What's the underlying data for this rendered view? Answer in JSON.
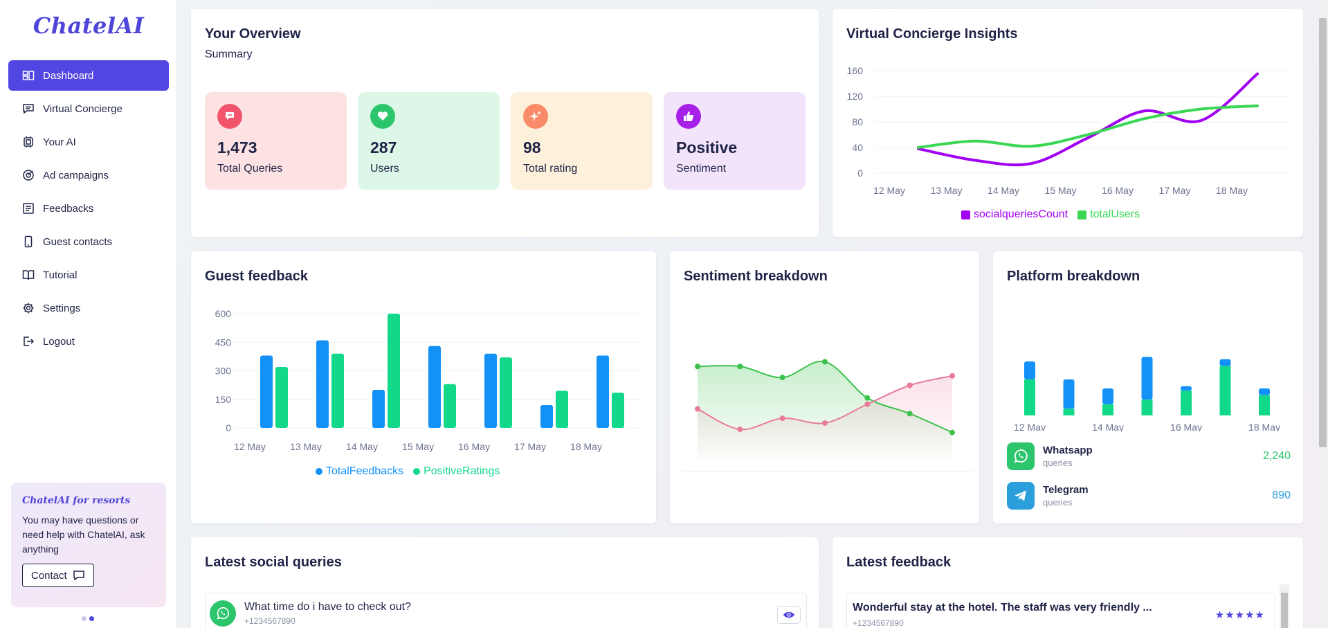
{
  "app": {
    "logo": "ChatelAI"
  },
  "sidebar": {
    "items": [
      {
        "label": "Dashboard",
        "icon": "dashboard-icon",
        "active": true
      },
      {
        "label": "Virtual Concierge",
        "icon": "chat-icon"
      },
      {
        "label": "Your AI",
        "icon": "chip-icon"
      },
      {
        "label": "Ad campaigns",
        "icon": "target-icon"
      },
      {
        "label": "Feedbacks",
        "icon": "feedback-icon"
      },
      {
        "label": "Guest contacts",
        "icon": "phone-icon"
      },
      {
        "label": "Tutorial",
        "icon": "book-icon"
      },
      {
        "label": "Settings",
        "icon": "gear-icon"
      },
      {
        "label": "Logout",
        "icon": "logout-icon"
      }
    ],
    "promo": {
      "title": "ChatelAI for resorts",
      "text": "You may have questions or need help with ChatelAI, ask anything",
      "button": "Contact"
    }
  },
  "overview": {
    "title": "Your Overview",
    "subtitle": "Summary",
    "stats": [
      {
        "value": "1,473",
        "label": "Total Queries",
        "icon": "chat-bubble-icon",
        "color": "#f2546b",
        "bg": "#fde2e4"
      },
      {
        "value": "287",
        "label": "Users",
        "icon": "heart-icon",
        "color": "#2cc56b",
        "bg": "#dcf7e7"
      },
      {
        "value": "98",
        "label": "Total rating",
        "icon": "sparkle-icon",
        "color": "#f98b68",
        "bg": "#fdf1dc"
      },
      {
        "value": "Positive",
        "label": "Sentiment",
        "icon": "thumbs-up-icon",
        "color": "#a620e8",
        "bg": "#f2e5fb"
      }
    ]
  },
  "colors": {
    "accent": "#5146e1",
    "purple": "#a100f2",
    "green": "#3ad654",
    "blue": "#1491f7",
    "teal_green": "#12d98a",
    "pink": "#e97a9a",
    "sent_green": "#3cc24c"
  },
  "insights": {
    "title": "Virtual Concierge Insights",
    "chart_data": {
      "type": "line",
      "x": [
        "12 May",
        "13 May",
        "14 May",
        "15 May",
        "16 May",
        "17 May",
        "18 May"
      ],
      "series": [
        {
          "name": "socialqueriesCount",
          "values": [
            38,
            20,
            15,
            55,
            97,
            82,
            155
          ]
        },
        {
          "name": "totalUsers",
          "values": [
            40,
            50,
            42,
            60,
            85,
            100,
            105
          ]
        }
      ],
      "yticks": [
        "160",
        "120",
        "80",
        "40",
        "0"
      ],
      "ylim": [
        0,
        160
      ]
    }
  },
  "guest_feedback": {
    "title": "Guest feedback",
    "chart_data": {
      "type": "bar",
      "categories": [
        "12 May",
        "13 May",
        "14 May",
        "15 May",
        "16 May",
        "17 May",
        "18 May"
      ],
      "series": [
        {
          "name": "TotalFeedbacks",
          "values": [
            380,
            460,
            200,
            430,
            390,
            120,
            380
          ]
        },
        {
          "name": "PositiveRatings",
          "values": [
            320,
            390,
            600,
            230,
            370,
            195,
            185
          ]
        }
      ],
      "yticks": [
        "600",
        "450",
        "300",
        "150",
        "0"
      ],
      "ylim": [
        0,
        600
      ]
    }
  },
  "sentiment": {
    "title": "Sentiment breakdown",
    "xlabels": [
      "12 May",
      "15 May",
      "18 May"
    ],
    "chart_data": {
      "type": "area",
      "series": [
        {
          "values": [
            0.62,
            0.62,
            0.55,
            0.65,
            0.42,
            0.32,
            0.2
          ]
        },
        {
          "values": [
            0.35,
            0.22,
            0.29,
            0.26,
            0.38,
            0.5,
            0.56
          ]
        }
      ],
      "ylim": [
        0,
        1
      ]
    }
  },
  "platform": {
    "title": "Platform breakdown",
    "chart_data": {
      "type": "bar",
      "stacked": true,
      "categories": [
        "12 May",
        "13 May",
        "14 May",
        "15 May",
        "16 May",
        "17 May",
        "18 May"
      ],
      "xlabels": [
        "12 May",
        "14 May",
        "16 May",
        "18 May"
      ],
      "series": [
        {
          "name": "Telegram",
          "values": [
            40,
            65,
            35,
            95,
            10,
            15,
            15
          ]
        },
        {
          "name": "Whatsapp",
          "values": [
            80,
            15,
            25,
            35,
            55,
            110,
            45
          ]
        }
      ]
    },
    "rows": [
      {
        "name": "Whatsapp",
        "sub": "queries",
        "value": "2,240",
        "icon": "whatsapp-icon"
      },
      {
        "name": "Telegram",
        "sub": "queries",
        "value": "890",
        "icon": "telegram-icon"
      }
    ]
  },
  "social": {
    "title": "Latest social queries",
    "items": [
      {
        "text": "What time do i have to check out?",
        "phone": "+1234567890"
      }
    ]
  },
  "latest_feedback": {
    "title": "Latest feedback",
    "items": [
      {
        "text": "Wonderful stay at the hotel. The staff was very friendly ...",
        "phone": "+1234567890",
        "stars": "★★★★★"
      }
    ]
  }
}
